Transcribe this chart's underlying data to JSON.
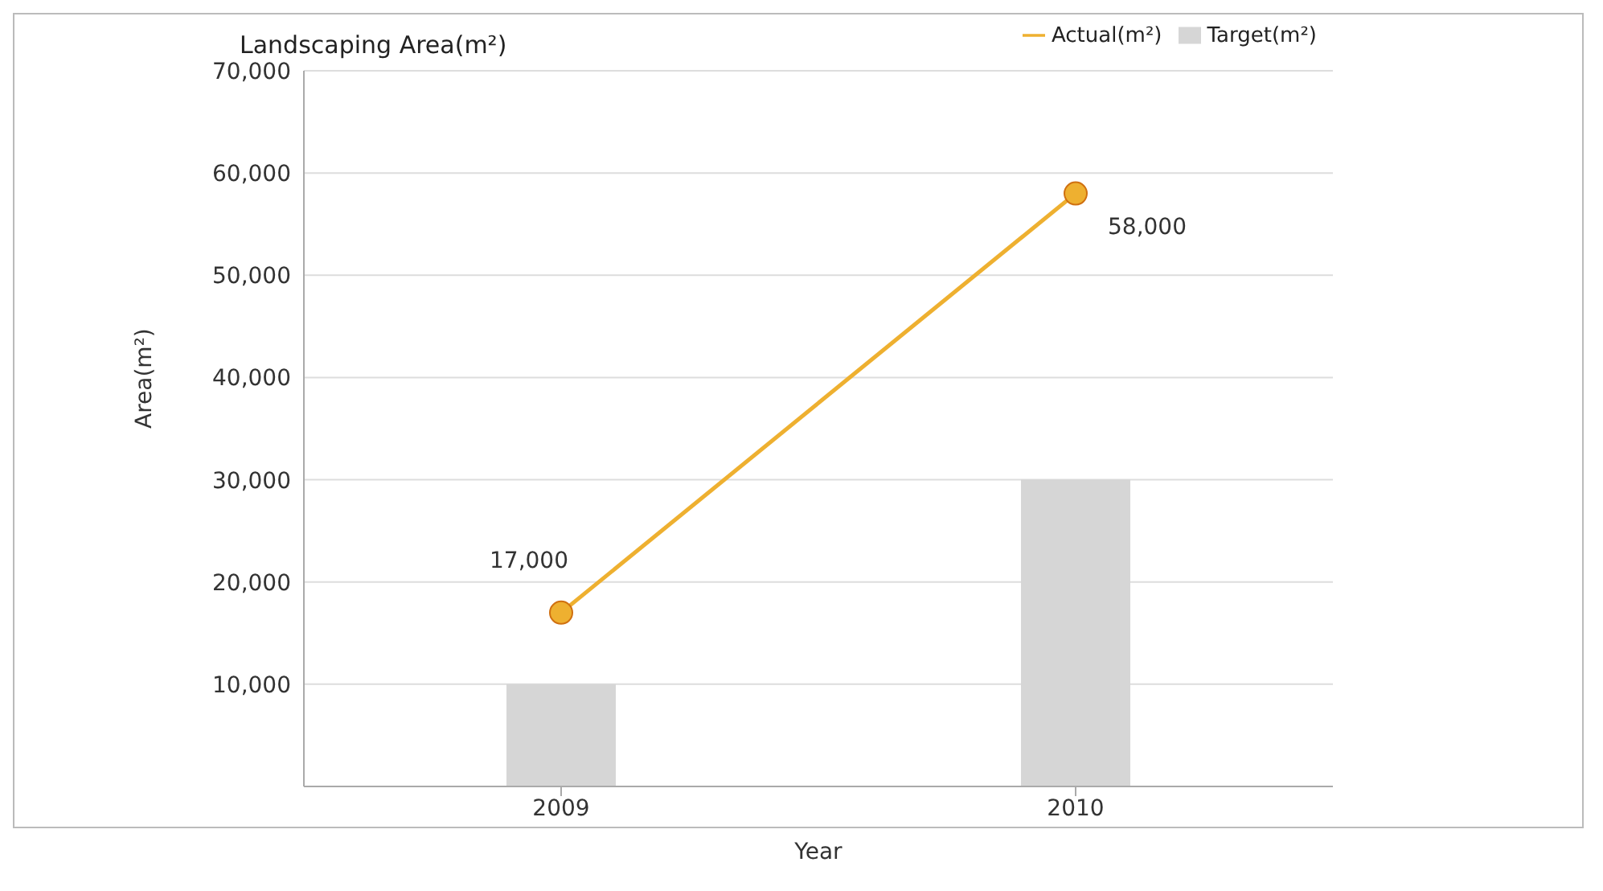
{
  "chart_data": {
    "type": "bar",
    "title": "Landscaping Area(m²)",
    "xlabel": "Year",
    "ylabel": "Area(m²)",
    "categories": [
      "2009",
      "2010"
    ],
    "series": [
      {
        "name": "Target(m²)",
        "color": "#d6d6d6",
        "values": [
          10000,
          30000
        ]
      },
      {
        "name": "Actual(m²)",
        "type": "line",
        "color": "#eeb030",
        "values": [
          17000,
          58000
        ],
        "value_labels": [
          "17,000",
          "58,000"
        ]
      }
    ],
    "ylim": [
      0,
      70000
    ],
    "yticks": [
      {
        "value": 10000,
        "label": "10,000"
      },
      {
        "value": 20000,
        "label": "20,000"
      },
      {
        "value": 30000,
        "label": "30,000"
      },
      {
        "value": 40000,
        "label": "40,000"
      },
      {
        "value": 50000,
        "label": "50,000"
      },
      {
        "value": 60000,
        "label": "60,000"
      },
      {
        "value": 70000,
        "label": "70,000"
      }
    ],
    "grid": "y",
    "legend": "top right",
    "marker": "circle"
  }
}
